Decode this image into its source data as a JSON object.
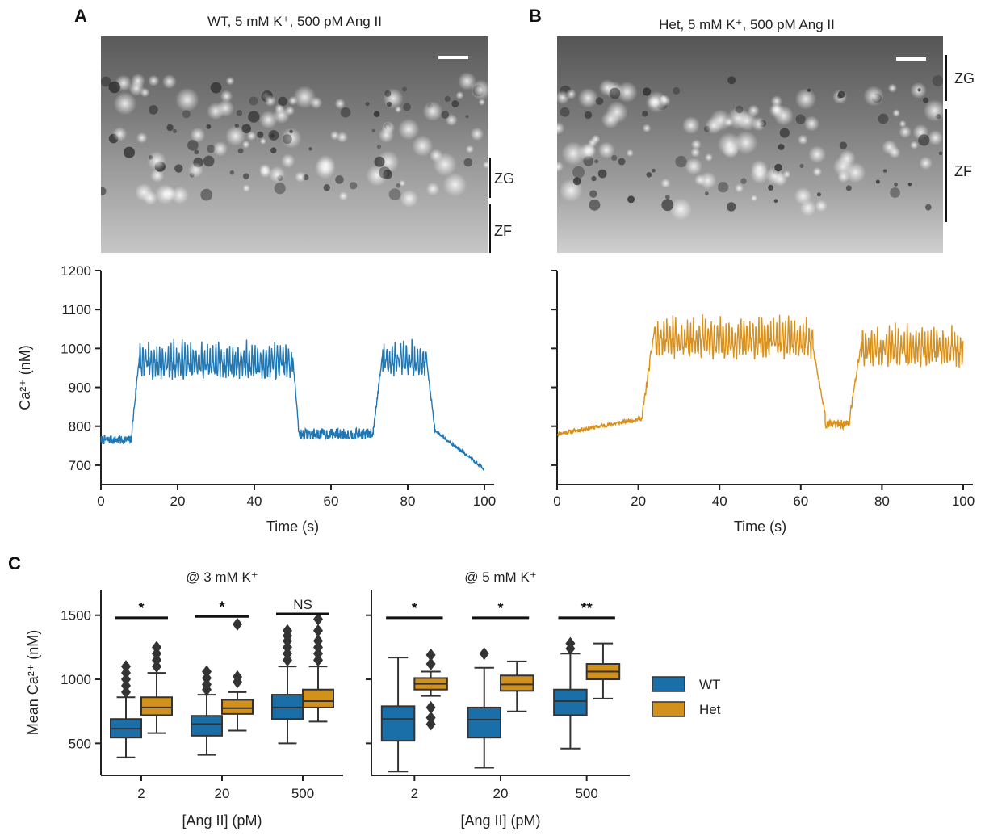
{
  "colors": {
    "wt": "#1f77b4",
    "het": "#d8901a",
    "wt_box": "#1a6fa8",
    "het_box": "#d2901c",
    "axis": "#222222"
  },
  "panels": {
    "A": {
      "letter": "A",
      "title": "WT, 5 mM  K⁺, 500 pM Ang II",
      "zones": [
        "ZG",
        "ZF"
      ]
    },
    "B": {
      "letter": "B",
      "title": "Het, 5 mM  K⁺, 500 pM Ang II",
      "zones": [
        "ZG",
        "ZF"
      ]
    },
    "C": {
      "letter": "C"
    }
  },
  "chart_data": [
    {
      "id": "trace-wt",
      "type": "line",
      "xlabel": "Time (s)",
      "ylabel": "Ca²⁺ (nM)",
      "xlim": [
        0,
        100
      ],
      "ylim": [
        650,
        1200
      ],
      "xticks": [
        0,
        20,
        40,
        60,
        80,
        100
      ],
      "yticks": [
        700,
        800,
        900,
        1000,
        1100,
        1200
      ],
      "color": "#1f77b4",
      "seed": 7,
      "segments": [
        {
          "t0": 0,
          "t1": 8,
          "base": 765,
          "amp": 14,
          "osc": 0
        },
        {
          "t0": 8,
          "t1": 10,
          "base": 880,
          "amp": 40,
          "osc": 0,
          "ramp": [
            780,
            980
          ]
        },
        {
          "t0": 10,
          "t1": 50,
          "base": 1000,
          "amp": 50,
          "osc": 1
        },
        {
          "t0": 50,
          "t1": 51.5,
          "base": 880,
          "amp": 20,
          "osc": 0,
          "ramp": [
            980,
            800
          ]
        },
        {
          "t0": 51.5,
          "t1": 71,
          "base": 780,
          "amp": 18,
          "osc": 0
        },
        {
          "t0": 71,
          "t1": 73.5,
          "base": 880,
          "amp": 30,
          "osc": 0,
          "ramp": [
            790,
            990
          ]
        },
        {
          "t0": 73.5,
          "t1": 85,
          "base": 1000,
          "amp": 45,
          "osc": 1
        },
        {
          "t0": 85,
          "t1": 87,
          "base": 870,
          "amp": 20,
          "osc": 0,
          "ramp": [
            960,
            800
          ]
        },
        {
          "t0": 87,
          "t1": 100,
          "base": 770,
          "amp": 14,
          "osc": 0,
          "ramp": [
            790,
            690
          ]
        }
      ]
    },
    {
      "id": "trace-het",
      "type": "line",
      "xlabel": "Time (s)",
      "ylabel": "",
      "xlim": [
        0,
        100
      ],
      "ylim": [
        650,
        1200
      ],
      "xticks": [
        0,
        20,
        40,
        60,
        80,
        100
      ],
      "yticks": [
        700,
        800,
        900,
        1000,
        1100,
        1200
      ],
      "color": "#d8901a",
      "seed": 11,
      "segments": [
        {
          "t0": 0,
          "t1": 21,
          "base": 790,
          "amp": 18,
          "osc": 0,
          "ramp": [
            780,
            820
          ]
        },
        {
          "t0": 21,
          "t1": 24,
          "base": 950,
          "amp": 40,
          "osc": 0,
          "ramp": [
            830,
            1050
          ]
        },
        {
          "t0": 24,
          "t1": 63,
          "base": 1060,
          "amp": 55,
          "osc": 1
        },
        {
          "t0": 63,
          "t1": 66,
          "base": 900,
          "amp": 20,
          "osc": 0,
          "ramp": [
            1000,
            830
          ]
        },
        {
          "t0": 66,
          "t1": 72,
          "base": 805,
          "amp": 15,
          "osc": 0
        },
        {
          "t0": 72,
          "t1": 75,
          "base": 900,
          "amp": 40,
          "osc": 0,
          "ramp": [
            820,
            1020
          ]
        },
        {
          "t0": 75,
          "t1": 100,
          "base": 1040,
          "amp": 55,
          "osc": 1
        }
      ]
    },
    {
      "id": "box-3mM",
      "type": "box",
      "title": "@ 3 mM K⁺",
      "xlabel": "[Ang II] (pM)",
      "ylabel": "Mean Ca²⁺ (nM)",
      "ylim": [
        250,
        1700
      ],
      "yticks": [
        500,
        1000,
        1500
      ],
      "categories": [
        "2",
        "20",
        "500"
      ],
      "series": [
        {
          "name": "WT",
          "boxes": [
            {
              "min": 390,
              "q1": 545,
              "median": 615,
              "q3": 690,
              "max": 860,
              "outliers": [
                900,
                950,
                1000,
                1050,
                1100
              ]
            },
            {
              "min": 410,
              "q1": 560,
              "median": 650,
              "q3": 715,
              "max": 880,
              "outliers": [
                920,
                960,
                1010,
                1060
              ]
            },
            {
              "min": 500,
              "q1": 690,
              "median": 780,
              "q3": 880,
              "max": 1100,
              "outliers": [
                1150,
                1200,
                1250,
                1300,
                1340,
                1380
              ]
            }
          ]
        },
        {
          "name": "Het",
          "boxes": [
            {
              "min": 580,
              "q1": 720,
              "median": 780,
              "q3": 860,
              "max": 1050,
              "outliers": [
                1100,
                1150,
                1200,
                1250
              ]
            },
            {
              "min": 600,
              "q1": 730,
              "median": 775,
              "q3": 840,
              "max": 900,
              "outliers": [
                980,
                1020,
                1430
              ]
            },
            {
              "min": 670,
              "q1": 780,
              "median": 830,
              "q3": 920,
              "max": 1100,
              "outliers": [
                1150,
                1200,
                1250,
                1300,
                1380,
                1470
              ]
            }
          ]
        }
      ],
      "significance": [
        "*",
        "*",
        "NS"
      ]
    },
    {
      "id": "box-5mM",
      "type": "box",
      "title": "@ 5 mM K⁺",
      "xlabel": "[Ang II] (pM)",
      "ylabel": "",
      "ylim": [
        250,
        1700
      ],
      "yticks": [
        500,
        1000,
        1500
      ],
      "categories": [
        "2",
        "20",
        "500"
      ],
      "series": [
        {
          "name": "WT",
          "boxes": [
            {
              "min": 280,
              "q1": 520,
              "median": 690,
              "q3": 790,
              "max": 1170,
              "outliers": []
            },
            {
              "min": 310,
              "q1": 545,
              "median": 685,
              "q3": 780,
              "max": 1090,
              "outliers": [
                1200
              ]
            },
            {
              "min": 460,
              "q1": 720,
              "median": 830,
              "q3": 920,
              "max": 1200,
              "outliers": [
                1240,
                1280
              ]
            }
          ]
        },
        {
          "name": "Het",
          "boxes": [
            {
              "min": 870,
              "q1": 920,
              "median": 965,
              "q3": 1010,
              "max": 1060,
              "outliers": [
                650,
                700,
                780,
                1120,
                1190
              ]
            },
            {
              "min": 750,
              "q1": 910,
              "median": 960,
              "q3": 1030,
              "max": 1140,
              "outliers": []
            },
            {
              "min": 850,
              "q1": 1000,
              "median": 1060,
              "q3": 1120,
              "max": 1280,
              "outliers": []
            }
          ]
        }
      ],
      "significance": [
        "*",
        "*",
        "**"
      ]
    }
  ],
  "legend": {
    "items": [
      {
        "label": "WT",
        "color": "#1a6fa8"
      },
      {
        "label": "Het",
        "color": "#d2901c"
      }
    ]
  }
}
